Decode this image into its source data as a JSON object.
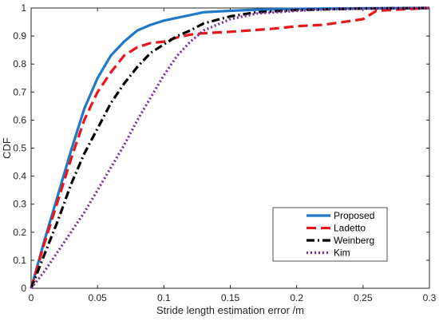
{
  "chart_data": {
    "type": "line",
    "title": "",
    "xlabel": "Stride length estimation error /m",
    "ylabel": "CDF",
    "xlim": [
      0,
      0.3
    ],
    "ylim": [
      0,
      1
    ],
    "x_ticks": [
      0,
      0.05,
      0.1,
      0.15,
      0.2,
      0.25,
      0.3
    ],
    "x_tick_labels": [
      "0",
      "0.05",
      "0.1",
      "0.15",
      "0.2",
      "0.25",
      "0.3"
    ],
    "y_ticks": [
      0,
      0.1,
      0.2,
      0.3,
      0.4,
      0.5,
      0.6,
      0.7,
      0.8,
      0.9,
      1
    ],
    "y_tick_labels": [
      "0",
      "0.1",
      "0.2",
      "0.3",
      "0.4",
      "0.5",
      "0.6",
      "0.7",
      "0.8",
      "0.9",
      "1"
    ],
    "grid": false,
    "legend_position": "bottom-right",
    "series": [
      {
        "name": "Proposed",
        "color": "#1f78c8",
        "style": "solid",
        "x": [
          0,
          0.01,
          0.02,
          0.03,
          0.04,
          0.05,
          0.06,
          0.07,
          0.08,
          0.09,
          0.1,
          0.11,
          0.12,
          0.13,
          0.15,
          0.17,
          0.2,
          0.25,
          0.3
        ],
        "y": [
          0,
          0.17,
          0.33,
          0.49,
          0.64,
          0.75,
          0.83,
          0.88,
          0.92,
          0.94,
          0.955,
          0.965,
          0.975,
          0.985,
          0.99,
          0.994,
          0.997,
          0.999,
          1
        ]
      },
      {
        "name": "Ladetto",
        "color": "#e8171b",
        "style": "dashed",
        "x": [
          0,
          0.01,
          0.02,
          0.03,
          0.04,
          0.05,
          0.06,
          0.07,
          0.08,
          0.09,
          0.1,
          0.11,
          0.12,
          0.13,
          0.15,
          0.18,
          0.2,
          0.22,
          0.25,
          0.26,
          0.3
        ],
        "y": [
          0,
          0.16,
          0.31,
          0.46,
          0.6,
          0.7,
          0.77,
          0.83,
          0.86,
          0.875,
          0.88,
          0.895,
          0.905,
          0.91,
          0.915,
          0.925,
          0.935,
          0.94,
          0.96,
          0.99,
          1
        ]
      },
      {
        "name": "Weinberg",
        "color": "#000000",
        "style": "dash-dot",
        "x": [
          0,
          0.01,
          0.02,
          0.03,
          0.04,
          0.05,
          0.06,
          0.07,
          0.08,
          0.09,
          0.1,
          0.11,
          0.12,
          0.13,
          0.15,
          0.17,
          0.2,
          0.25,
          0.3
        ],
        "y": [
          0,
          0.12,
          0.24,
          0.37,
          0.48,
          0.57,
          0.66,
          0.73,
          0.79,
          0.84,
          0.87,
          0.9,
          0.92,
          0.945,
          0.97,
          0.985,
          0.993,
          0.998,
          1
        ]
      },
      {
        "name": "Kim",
        "color": "#7b2a9c",
        "style": "dotted",
        "x": [
          0,
          0.01,
          0.02,
          0.03,
          0.04,
          0.05,
          0.06,
          0.07,
          0.08,
          0.09,
          0.1,
          0.11,
          0.12,
          0.13,
          0.15,
          0.17,
          0.2,
          0.22,
          0.25,
          0.3
        ],
        "y": [
          0,
          0.06,
          0.13,
          0.2,
          0.27,
          0.35,
          0.43,
          0.51,
          0.6,
          0.68,
          0.76,
          0.83,
          0.88,
          0.92,
          0.96,
          0.98,
          0.99,
          0.995,
          0.998,
          1
        ]
      }
    ]
  }
}
